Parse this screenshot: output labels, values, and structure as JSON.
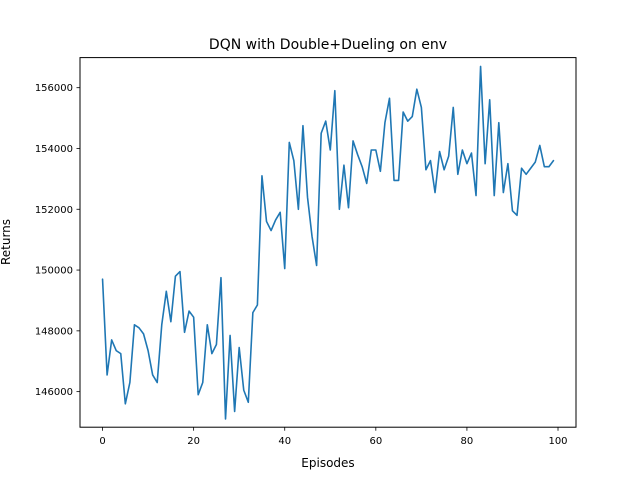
{
  "chart_data": {
    "type": "line",
    "title": "DQN with Double+Dueling on env",
    "xlabel": "Episodes",
    "ylabel": "Returns",
    "xlim": [
      -4.95,
      103.95
    ],
    "ylim": [
      144830,
      156990
    ],
    "xticks": [
      0,
      20,
      40,
      60,
      80,
      100
    ],
    "yticks": [
      146000,
      148000,
      150000,
      152000,
      154000,
      156000
    ],
    "ytick_labels": [
      "146000",
      "148000",
      "150000",
      "152000",
      "154000",
      "156000"
    ],
    "grid": false,
    "legend": "none",
    "line_color": "#1f77b4",
    "series": [
      {
        "x": [
          0,
          1,
          2,
          3,
          4,
          5,
          6,
          7,
          8,
          9,
          10,
          11,
          12,
          13,
          14,
          15,
          16,
          17,
          18,
          19,
          20,
          21,
          22,
          23,
          24,
          25,
          26,
          27,
          28,
          29,
          30,
          31,
          32,
          33,
          34,
          35,
          36,
          37,
          38,
          39,
          40,
          41,
          42,
          43,
          44,
          45,
          46,
          47,
          48,
          49,
          50,
          51,
          52,
          53,
          54,
          55,
          56,
          57,
          58,
          59,
          60,
          61,
          62,
          63,
          64,
          65,
          66,
          67,
          68,
          69,
          70,
          71,
          72,
          73,
          74,
          75,
          76,
          77,
          78,
          79,
          80,
          81,
          82,
          83,
          84,
          85,
          86,
          87,
          88,
          89,
          90,
          91,
          92,
          93,
          94,
          95,
          96,
          97,
          98,
          99
        ],
        "values": [
          149700,
          146550,
          147700,
          147350,
          147250,
          145600,
          146300,
          148200,
          148100,
          147900,
          147350,
          146550,
          146300,
          148200,
          149300,
          148300,
          149800,
          149950,
          147950,
          148650,
          148450,
          145900,
          146300,
          148200,
          147250,
          147550,
          149750,
          145100,
          147850,
          145350,
          147450,
          146050,
          145650,
          148600,
          148850,
          153100,
          151600,
          151300,
          151650,
          151900,
          150050,
          154200,
          153600,
          152000,
          154750,
          152400,
          151100,
          150150,
          154500,
          154900,
          153950,
          155900,
          152000,
          153450,
          152050,
          154250,
          153800,
          153400,
          152850,
          153950,
          153950,
          153250,
          154850,
          155650,
          152950,
          152950,
          155200,
          154900,
          155050,
          155950,
          155350,
          153300,
          153600,
          152550,
          153900,
          153300,
          153750,
          155350,
          153150,
          153950,
          153500,
          153850,
          152450,
          156700,
          153500,
          155600,
          152450,
          154850,
          152550,
          153500,
          151950,
          151800,
          153350,
          153150,
          153350,
          153550,
          154100,
          153400,
          153400,
          153600
        ]
      }
    ]
  }
}
